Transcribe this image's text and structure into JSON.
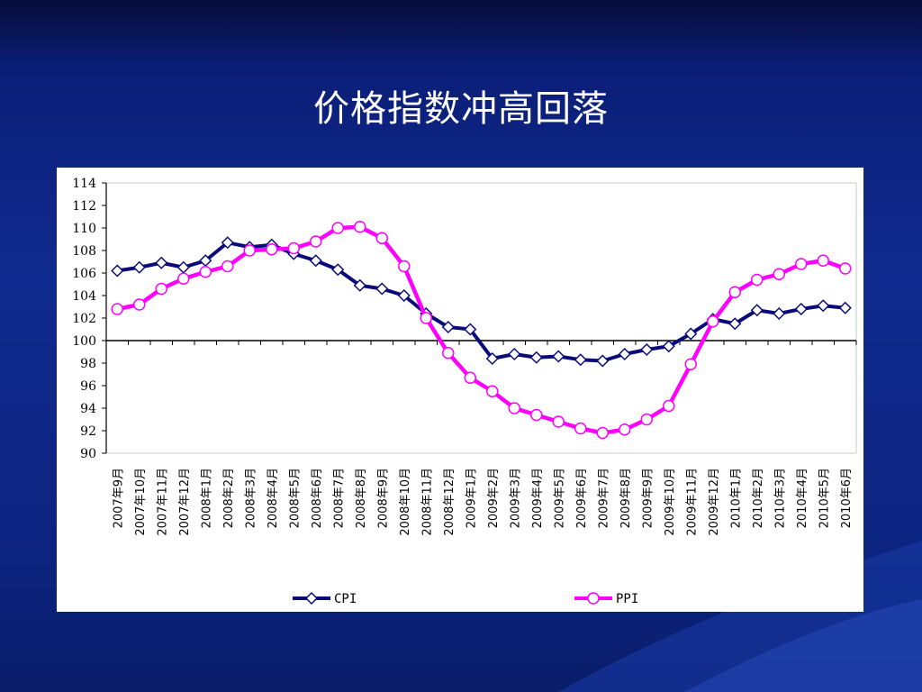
{
  "slide": {
    "title": "价格指数冲高回落"
  },
  "colors": {
    "cpi": "#0a0a78",
    "ppi": "#ff00ff",
    "background": "#0c2480"
  },
  "chart_data": {
    "type": "line",
    "title": "",
    "xlabel": "",
    "ylabel": "",
    "ylim": [
      90,
      114
    ],
    "yticks": [
      90,
      92,
      94,
      96,
      98,
      100,
      102,
      104,
      106,
      108,
      110,
      112,
      114
    ],
    "reference_line": 100,
    "grid": false,
    "legend": "bottom",
    "categories": [
      "2007年9月",
      "2007年10月",
      "2007年11月",
      "2007年12月",
      "2008年1月",
      "2008年2月",
      "2008年3月",
      "2008年4月",
      "2008年5月",
      "2008年6月",
      "2008年7月",
      "2008年8月",
      "2008年9月",
      "2008年10月",
      "2008年11月",
      "2008年12月",
      "2009年1月",
      "2009年2月",
      "2009年3月",
      "2009年4月",
      "2009年5月",
      "2009年6月",
      "2009年7月",
      "2009年8月",
      "2009年9月",
      "2009年10月",
      "2009年11月",
      "2009年12月",
      "2010年1月",
      "2010年2月",
      "2010年3月",
      "2010年4月",
      "2010年5月",
      "2010年6月"
    ],
    "series": [
      {
        "name": "CPI",
        "marker": "diamond",
        "values": [
          106.2,
          106.5,
          106.9,
          106.5,
          107.1,
          108.7,
          108.3,
          108.5,
          107.7,
          107.1,
          106.3,
          104.9,
          104.6,
          104.0,
          102.4,
          101.2,
          101.0,
          98.4,
          98.8,
          98.5,
          98.6,
          98.3,
          98.2,
          98.8,
          99.2,
          99.5,
          100.6,
          101.9,
          101.5,
          102.7,
          102.4,
          102.8,
          103.1,
          102.9
        ]
      },
      {
        "name": "PPI",
        "marker": "circle",
        "values": [
          102.8,
          103.2,
          104.6,
          105.5,
          106.1,
          106.6,
          108.0,
          108.1,
          108.2,
          108.8,
          110.0,
          110.1,
          109.1,
          106.6,
          102.0,
          98.9,
          96.7,
          95.5,
          94.0,
          93.4,
          92.8,
          92.2,
          91.8,
          92.1,
          93.0,
          94.2,
          97.9,
          101.7,
          104.3,
          105.4,
          105.9,
          106.8,
          107.1,
          106.4
        ]
      }
    ]
  }
}
